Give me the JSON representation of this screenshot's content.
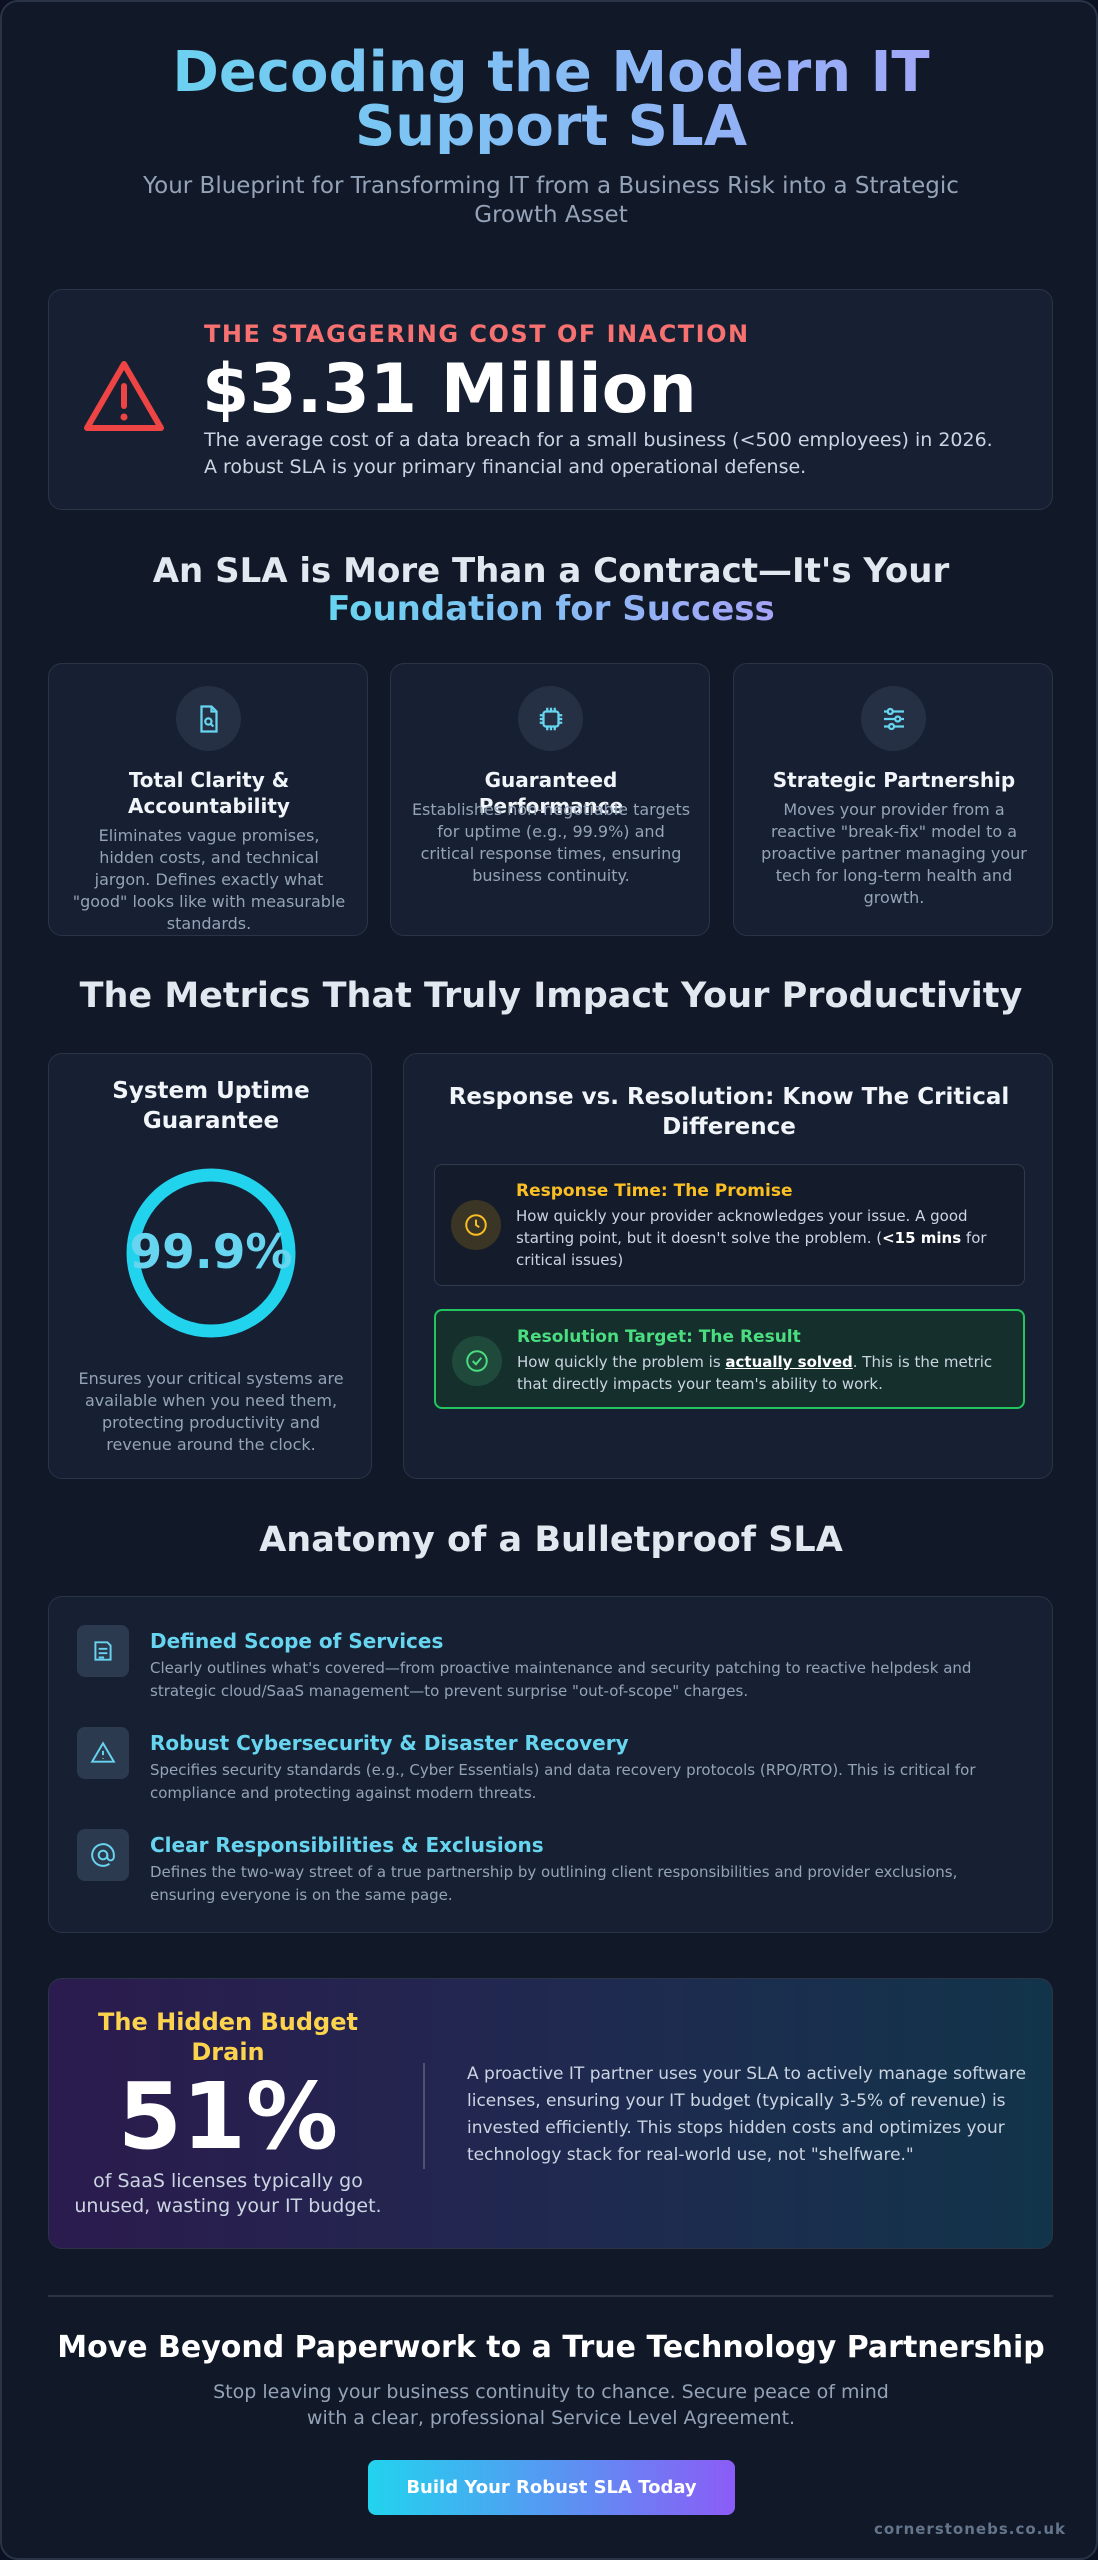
{
  "header": {
    "title": "Decoding the Modern IT Support SLA",
    "subtitle": "Your Blueprint for Transforming IT from a Business Risk into a Strategic Growth Asset"
  },
  "cost": {
    "kicker": "THE STAGGERING COST OF INACTION",
    "amount": "$3.31 Million",
    "text": "The average cost of a data breach for a small business (<500 employees) in 2026. A robust SLA is your primary financial and operational defense."
  },
  "foundation": {
    "heading": "An SLA is More Than a Contract—It's Your ",
    "heading_highlight": "Foundation for Success",
    "cards": [
      {
        "title": "Total Clarity & Accountability",
        "text": "Eliminates vague promises, hidden costs, and technical jargon. Defines exactly what \"good\" looks like with measurable standards."
      },
      {
        "title": "Guaranteed Performance",
        "text": "Establishes non-negotiable targets for uptime (e.g., 99.9%) and critical response times, ensuring business continuity."
      },
      {
        "title": "Strategic Partnership",
        "text": "Moves your provider from a reactive \"break-fix\" model to a proactive partner managing your tech for long-term health and growth."
      }
    ]
  },
  "metrics": {
    "heading": "The Metrics That Truly Impact Your Productivity",
    "uptime": {
      "title": "System Uptime Guarantee",
      "value": "99.9%",
      "text": "Ensures your critical systems are available when you need them, protecting productivity and revenue around the clock."
    },
    "response": {
      "title": "Response vs. Resolution: Know The Critical Difference",
      "items": [
        {
          "title": "Response Time: The Promise",
          "text_before": "How quickly your provider acknowledges your issue. A good starting point, but it doesn't solve the problem. (",
          "bold": "<15 mins",
          "text_after": " for critical issues)"
        },
        {
          "title": "Resolution Target: The Result",
          "text_before": "How quickly the problem is ",
          "bold": "actually solved",
          "text_after": ". This is the metric that directly impacts your team's ability to work."
        }
      ]
    }
  },
  "anatomy": {
    "heading": "Anatomy of a Bulletproof SLA",
    "items": [
      {
        "title": "Defined Scope of Services",
        "text": "Clearly outlines what's covered—from proactive maintenance and security patching to reactive helpdesk and strategic cloud/SaaS management—to prevent surprise \"out-of-scope\" charges."
      },
      {
        "title": "Robust Cybersecurity & Disaster Recovery",
        "text": "Specifies security standards (e.g., Cyber Essentials) and data recovery protocols (RPO/RTO). This is critical for compliance and protecting against modern threats."
      },
      {
        "title": "Clear Responsibilities & Exclusions",
        "text": "Defines the two-way street of a true partnership by outlining client responsibilities and provider exclusions, ensuring everyone is on the same page."
      }
    ]
  },
  "budget": {
    "title": "The Hidden Budget Drain",
    "value": "51%",
    "caption": "of SaaS licenses typically go unused, wasting your IT budget.",
    "text": "A proactive IT partner uses your SLA to actively manage software licenses, ensuring your IT budget (typically 3-5% of revenue) is invested efficiently. This stops hidden costs and optimizes your technology stack for real-world use, not \"shelfware.\""
  },
  "cta": {
    "heading": "Move Beyond Paperwork to a True Technology Partnership",
    "text": "Stop leaving your business continuity to chance. Secure peace of mind with a clear, professional Service Level Agreement.",
    "button": "Build Your Robust SLA Today"
  },
  "footer": {
    "site": "cornerstonebs.co.uk"
  }
}
